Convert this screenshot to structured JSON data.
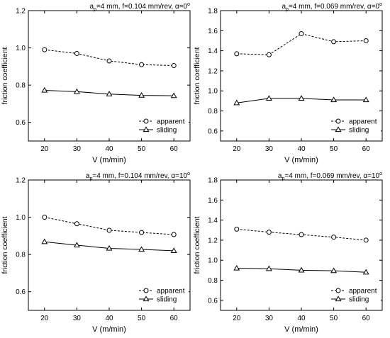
{
  "chart_data": [
    {
      "type": "line",
      "title_parts": {
        "pre": "a",
        "sub": "p",
        "mid": "=4 mm, f=0.104 mm/rev, ",
        "alpha": "α=0",
        "sup": "o"
      },
      "xlabel": "V (m/min)",
      "ylabel": "friction coefficient",
      "x": [
        20,
        30,
        40,
        50,
        60
      ],
      "xlim": [
        15,
        65
      ],
      "ylim": [
        0.5,
        1.2
      ],
      "yticks": [
        "0.6",
        "0.8",
        "1.0",
        "1.2"
      ],
      "xticks": [
        "20",
        "30",
        "40",
        "50",
        "60"
      ],
      "legend": "bottom-right",
      "series": [
        {
          "name": "apparent",
          "marker": "circle",
          "dash": true,
          "values": [
            0.99,
            0.97,
            0.93,
            0.91,
            0.905
          ]
        },
        {
          "name": "sliding",
          "marker": "triangle",
          "dash": false,
          "values": [
            0.772,
            0.765,
            0.752,
            0.745,
            0.743
          ]
        }
      ]
    },
    {
      "type": "line",
      "title_parts": {
        "pre": "a",
        "sub": "p",
        "mid": "=4 mm, f=0.069 mm/rev, ",
        "alpha": "α=0",
        "sup": "o"
      },
      "xlabel": "V (m/min)",
      "ylabel": "friction coefficient",
      "x": [
        20,
        30,
        40,
        50,
        60
      ],
      "xlim": [
        15,
        65
      ],
      "ylim": [
        0.5,
        1.8
      ],
      "yticks": [
        "0.6",
        "0.8",
        "1.0",
        "1.2",
        "1.4",
        "1.6",
        "1.8"
      ],
      "xticks": [
        "20",
        "30",
        "40",
        "50",
        "60"
      ],
      "legend": "bottom-right",
      "series": [
        {
          "name": "apparent",
          "marker": "circle",
          "dash": true,
          "values": [
            1.37,
            1.36,
            1.57,
            1.49,
            1.5
          ]
        },
        {
          "name": "sliding",
          "marker": "triangle",
          "dash": false,
          "values": [
            0.88,
            0.925,
            0.925,
            0.91,
            0.91
          ]
        }
      ]
    },
    {
      "type": "line",
      "title_parts": {
        "pre": "a",
        "sub": "p",
        "mid": "=4 mm, f=0.104 mm/rev, ",
        "alpha": "α=10",
        "sup": "o"
      },
      "xlabel": "V (m/min)",
      "ylabel": "friction coefficient",
      "x": [
        20,
        30,
        40,
        50,
        60
      ],
      "xlim": [
        15,
        65
      ],
      "ylim": [
        0.5,
        1.2
      ],
      "yticks": [
        "0.6",
        "0.8",
        "1.0",
        "1.2"
      ],
      "xticks": [
        "20",
        "30",
        "40",
        "50",
        "60"
      ],
      "legend": "bottom-right",
      "series": [
        {
          "name": "apparent",
          "marker": "circle",
          "dash": true,
          "values": [
            1.0,
            0.965,
            0.93,
            0.918,
            0.907
          ]
        },
        {
          "name": "sliding",
          "marker": "triangle",
          "dash": false,
          "values": [
            0.868,
            0.85,
            0.833,
            0.827,
            0.82
          ]
        }
      ]
    },
    {
      "type": "line",
      "title_parts": {
        "pre": "a",
        "sub": "p",
        "mid": "=4 mm, f=0.069 mm/rev, ",
        "alpha": "α=10",
        "sup": "o"
      },
      "xlabel": "V (m/min)",
      "ylabel": "friction coefficient",
      "x": [
        20,
        30,
        40,
        50,
        60
      ],
      "xlim": [
        15,
        65
      ],
      "ylim": [
        0.5,
        1.8
      ],
      "yticks": [
        "0.6",
        "0.8",
        "1.0",
        "1.2",
        "1.4",
        "1.6",
        "1.8"
      ],
      "xticks": [
        "20",
        "30",
        "40",
        "50",
        "60"
      ],
      "legend": "bottom-right",
      "series": [
        {
          "name": "apparent",
          "marker": "circle",
          "dash": true,
          "values": [
            1.31,
            1.28,
            1.255,
            1.23,
            1.2
          ]
        },
        {
          "name": "sliding",
          "marker": "triangle",
          "dash": false,
          "values": [
            0.92,
            0.915,
            0.9,
            0.895,
            0.88
          ]
        }
      ]
    }
  ]
}
